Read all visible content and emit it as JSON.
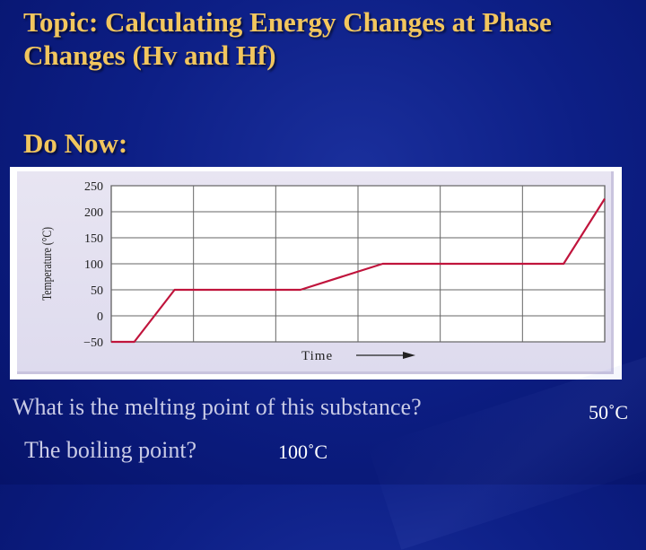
{
  "slide": {
    "title": "Topic: Calculating Energy Changes at Phase Changes (Hv and Hf)",
    "do_now": "Do Now:",
    "question1": "What is the melting point of  this substance?",
    "answer1": "50˚C",
    "question2": "The boiling point?",
    "answer2": "100˚C",
    "colors": {
      "title": "#f2c65e",
      "background": "#0d1f86",
      "line": "#c0143c",
      "question_text": "#c9cbe6"
    }
  },
  "chart_data": {
    "type": "line",
    "title": "",
    "xlabel": "Time",
    "ylabel": "Temperature (°C)",
    "ylim": [
      -50,
      250
    ],
    "yticks": [
      "250",
      "200",
      "150",
      "100",
      "50",
      "0",
      "−50"
    ],
    "xlim": [
      0,
      6
    ],
    "grid": true,
    "series": [
      {
        "x": [
          0,
          0.28,
          0.77,
          2.3,
          3.3,
          5.5,
          6.0
        ],
        "y": [
          -50,
          -50,
          50,
          50,
          100,
          100,
          225
        ]
      }
    ]
  }
}
